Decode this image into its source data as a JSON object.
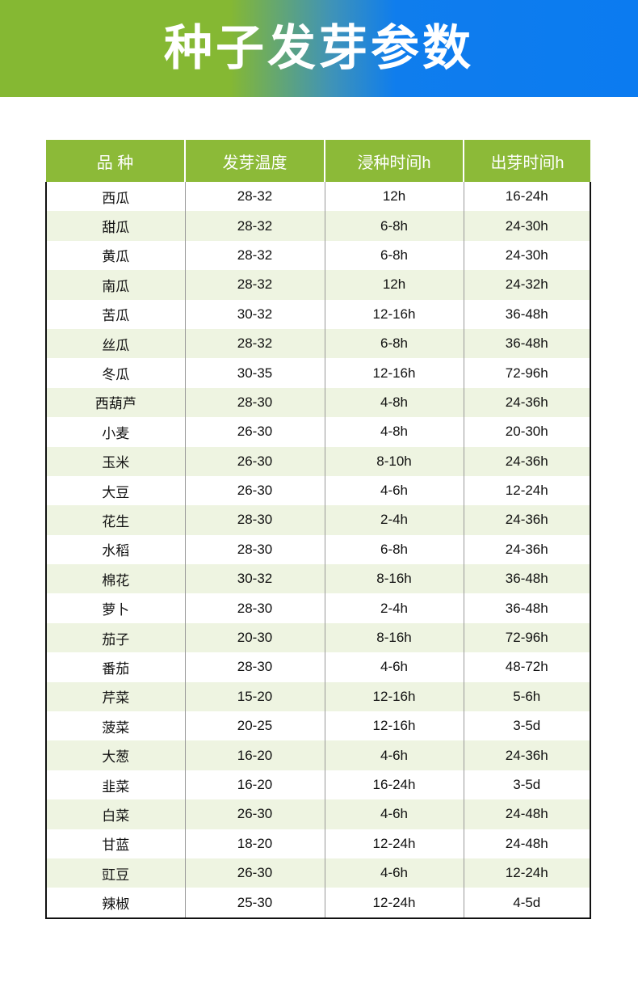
{
  "title": "种子发芽参数",
  "colors": {
    "green": "#8cba38",
    "blue": "#0b7bf0",
    "alt_row": "#eef4e1"
  },
  "headers": [
    "品 种",
    "发芽温度",
    "浸种时间h",
    "出芽时间h"
  ],
  "rows": [
    [
      "西瓜",
      "28-32",
      "12h",
      "16-24h"
    ],
    [
      "甜瓜",
      "28-32",
      "6-8h",
      "24-30h"
    ],
    [
      "黄瓜",
      "28-32",
      "6-8h",
      "24-30h"
    ],
    [
      "南瓜",
      "28-32",
      "12h",
      "24-32h"
    ],
    [
      "苦瓜",
      "30-32",
      "12-16h",
      "36-48h"
    ],
    [
      "丝瓜",
      "28-32",
      "6-8h",
      "36-48h"
    ],
    [
      "冬瓜",
      "30-35",
      "12-16h",
      "72-96h"
    ],
    [
      "西葫芦",
      "28-30",
      "4-8h",
      "24-36h"
    ],
    [
      "小麦",
      "26-30",
      "4-8h",
      "20-30h"
    ],
    [
      "玉米",
      "26-30",
      "8-10h",
      "24-36h"
    ],
    [
      "大豆",
      "26-30",
      "4-6h",
      "12-24h"
    ],
    [
      "花生",
      "28-30",
      "2-4h",
      "24-36h"
    ],
    [
      "水稻",
      "28-30",
      "6-8h",
      "24-36h"
    ],
    [
      "棉花",
      "30-32",
      "8-16h",
      "36-48h"
    ],
    [
      "萝卜",
      "28-30",
      "2-4h",
      "36-48h"
    ],
    [
      "茄子",
      "20-30",
      "8-16h",
      "72-96h"
    ],
    [
      "番茄",
      "28-30",
      "4-6h",
      "48-72h"
    ],
    [
      "芹菜",
      "15-20",
      "12-16h",
      "5-6h"
    ],
    [
      "菠菜",
      "20-25",
      "12-16h",
      "3-5d"
    ],
    [
      "大葱",
      "16-20",
      "4-6h",
      "24-36h"
    ],
    [
      "韭菜",
      "16-20",
      "16-24h",
      "3-5d"
    ],
    [
      "白菜",
      "26-30",
      "4-6h",
      "24-48h"
    ],
    [
      "甘蓝",
      "18-20",
      "12-24h",
      "24-48h"
    ],
    [
      "豇豆",
      "26-30",
      "4-6h",
      "12-24h"
    ],
    [
      "辣椒",
      "25-30",
      "12-24h",
      "4-5d"
    ]
  ]
}
